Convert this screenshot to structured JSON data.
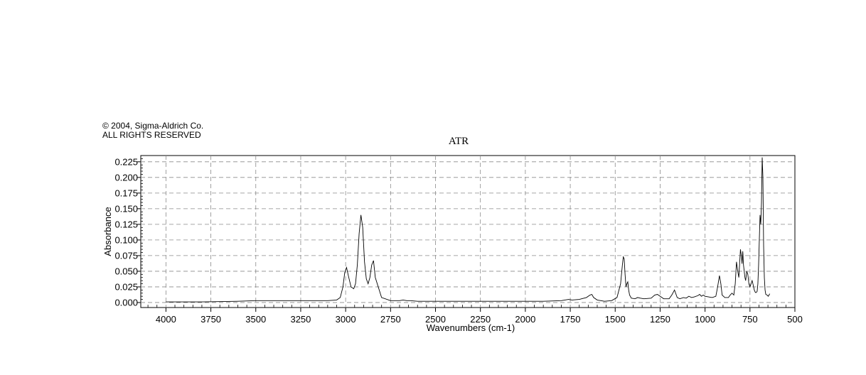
{
  "copyright": {
    "line1": "© 2004, Sigma-Aldrich Co.",
    "line2": "ALL RIGHTS RESERVED"
  },
  "chart_data": {
    "type": "line",
    "title": "ATR",
    "xlabel": "Wavenumbers (cm-1)",
    "ylabel": "Absorbance",
    "xlim": [
      4140,
      500
    ],
    "ylim": [
      -0.008,
      0.235
    ],
    "x_reversed": true,
    "grid": true,
    "grid_style": "dashed",
    "line_color": "#000000",
    "x_ticks": [
      4000,
      3750,
      3500,
      3250,
      3000,
      2750,
      2500,
      2250,
      2000,
      1750,
      1500,
      1250,
      1000,
      750,
      500
    ],
    "y_ticks": [
      0.0,
      0.025,
      0.05,
      0.075,
      0.1,
      0.125,
      0.15,
      0.175,
      0.2,
      0.225
    ],
    "y_tick_labels": [
      "0.000",
      "0.025",
      "0.050",
      "0.075",
      "0.100",
      "0.125",
      "0.150",
      "0.175",
      "0.200",
      "0.225"
    ],
    "series": [
      {
        "x": [
          4000,
          3800,
          3600,
          3500,
          3400,
          3300,
          3200,
          3100,
          3050,
          3030,
          3015,
          3005,
          2995,
          2985,
          2970,
          2955,
          2945,
          2935,
          2925,
          2915,
          2905,
          2895,
          2885,
          2875,
          2865,
          2855,
          2845,
          2835,
          2800,
          2750,
          2700,
          2680,
          2660,
          2640,
          2600,
          2500,
          2400,
          2300,
          2200,
          2100,
          2000,
          1900,
          1800,
          1760,
          1740,
          1700,
          1660,
          1640,
          1630,
          1620,
          1600,
          1560,
          1520,
          1490,
          1470,
          1460,
          1455,
          1450,
          1445,
          1440,
          1435,
          1430,
          1425,
          1420,
          1410,
          1390,
          1375,
          1360,
          1340,
          1300,
          1280,
          1265,
          1250,
          1230,
          1200,
          1185,
          1170,
          1165,
          1155,
          1140,
          1120,
          1105,
          1090,
          1075,
          1060,
          1040,
          1030,
          1020,
          1010,
          1000,
          980,
          960,
          940,
          930,
          920,
          912,
          905,
          890,
          870,
          860,
          850,
          840,
          832,
          825,
          818,
          812,
          808,
          803,
          798,
          794,
          790,
          786,
          782,
          778,
          774,
          768,
          762,
          756,
          750,
          744,
          738,
          732,
          726,
          720,
          715,
          710,
          706,
          702,
          698,
          694,
          690,
          686,
          682,
          678,
          674,
          670,
          666,
          662,
          655,
          648,
          640
        ],
        "y": [
          0.001,
          0.001,
          0.002,
          0.003,
          0.003,
          0.003,
          0.003,
          0.003,
          0.004,
          0.008,
          0.025,
          0.048,
          0.056,
          0.043,
          0.025,
          0.022,
          0.03,
          0.06,
          0.11,
          0.14,
          0.12,
          0.065,
          0.038,
          0.03,
          0.04,
          0.06,
          0.067,
          0.04,
          0.008,
          0.003,
          0.003,
          0.004,
          0.003,
          0.003,
          0.002,
          0.002,
          0.002,
          0.002,
          0.002,
          0.002,
          0.002,
          0.002,
          0.003,
          0.005,
          0.004,
          0.005,
          0.008,
          0.012,
          0.013,
          0.008,
          0.004,
          0.002,
          0.003,
          0.008,
          0.03,
          0.06,
          0.073,
          0.07,
          0.045,
          0.025,
          0.03,
          0.033,
          0.02,
          0.012,
          0.007,
          0.006,
          0.008,
          0.007,
          0.006,
          0.007,
          0.012,
          0.013,
          0.01,
          0.006,
          0.006,
          0.012,
          0.02,
          0.016,
          0.008,
          0.006,
          0.008,
          0.007,
          0.01,
          0.008,
          0.009,
          0.011,
          0.013,
          0.01,
          0.012,
          0.01,
          0.009,
          0.008,
          0.01,
          0.025,
          0.043,
          0.03,
          0.012,
          0.008,
          0.008,
          0.012,
          0.015,
          0.012,
          0.03,
          0.065,
          0.05,
          0.04,
          0.06,
          0.085,
          0.075,
          0.062,
          0.082,
          0.06,
          0.05,
          0.04,
          0.035,
          0.05,
          0.045,
          0.03,
          0.025,
          0.03,
          0.035,
          0.028,
          0.02,
          0.016,
          0.016,
          0.018,
          0.03,
          0.06,
          0.1,
          0.14,
          0.125,
          0.16,
          0.232,
          0.2,
          0.09,
          0.04,
          0.02,
          0.013,
          0.012,
          0.01,
          0.014
        ]
      }
    ]
  }
}
